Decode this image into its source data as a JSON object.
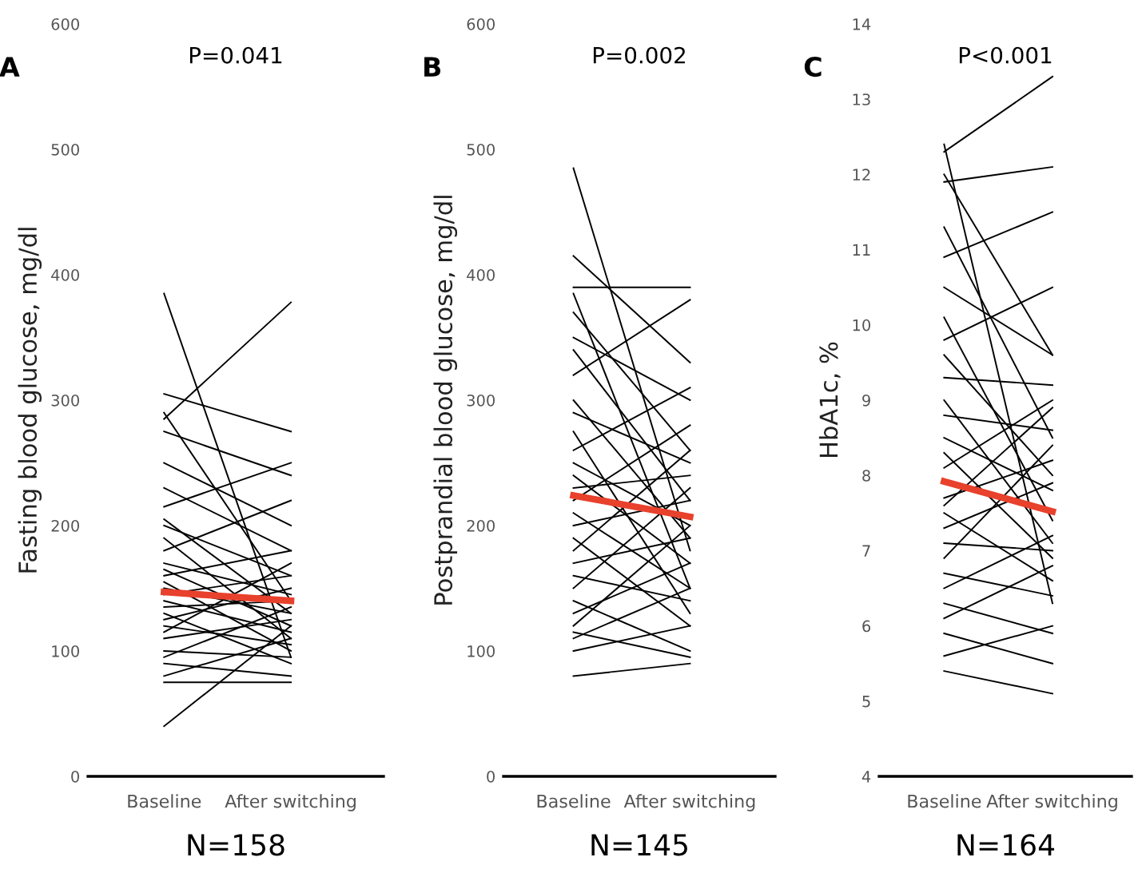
{
  "chart_data": [
    {
      "type": "line",
      "title": "P=0.041",
      "annotations": [
        "A"
      ],
      "xlabel": "N=158",
      "ylabel": "Fasting blood glucose, mg/dl",
      "categories": [
        "Baseline",
        "After switching"
      ],
      "ylim": [
        0,
        600
      ],
      "yticks": [
        0,
        100,
        200,
        300,
        400,
        500,
        600
      ],
      "grid": false,
      "legend": false,
      "marker": "none",
      "line_style": "solid",
      "series": [
        {
          "color": "#000000",
          "values": [
            385,
            95
          ]
        },
        {
          "color": "#000000",
          "values": [
            305,
            275
          ]
        },
        {
          "color": "#000000",
          "values": [
            290,
            140
          ]
        },
        {
          "color": "#000000",
          "values": [
            285,
            378
          ]
        },
        {
          "color": "#000000",
          "values": [
            275,
            240
          ]
        },
        {
          "color": "#000000",
          "values": [
            250,
            200
          ]
        },
        {
          "color": "#000000",
          "values": [
            230,
            180
          ]
        },
        {
          "color": "#000000",
          "values": [
            215,
            250
          ]
        },
        {
          "color": "#000000",
          "values": [
            205,
            130
          ]
        },
        {
          "color": "#000000",
          "values": [
            200,
            160
          ]
        },
        {
          "color": "#000000",
          "values": [
            190,
            110
          ]
        },
        {
          "color": "#000000",
          "values": [
            180,
            220
          ]
        },
        {
          "color": "#000000",
          "values": [
            170,
            145
          ]
        },
        {
          "color": "#000000",
          "values": [
            165,
            120
          ]
        },
        {
          "color": "#000000",
          "values": [
            160,
            180
          ]
        },
        {
          "color": "#000000",
          "values": [
            155,
            100
          ]
        },
        {
          "color": "#000000",
          "values": [
            150,
            130
          ]
        },
        {
          "color": "#000000",
          "values": [
            145,
            160
          ]
        },
        {
          "color": "#000000",
          "values": [
            140,
            115
          ]
        },
        {
          "color": "#000000",
          "values": [
            135,
            140
          ]
        },
        {
          "color": "#000000",
          "values": [
            130,
            90
          ]
        },
        {
          "color": "#000000",
          "values": [
            125,
            150
          ]
        },
        {
          "color": "#000000",
          "values": [
            120,
            105
          ]
        },
        {
          "color": "#000000",
          "values": [
            115,
            170
          ]
        },
        {
          "color": "#000000",
          "values": [
            110,
            125
          ]
        },
        {
          "color": "#000000",
          "values": [
            100,
            95
          ]
        },
        {
          "color": "#000000",
          "values": [
            95,
            135
          ]
        },
        {
          "color": "#000000",
          "values": [
            90,
            80
          ]
        },
        {
          "color": "#000000",
          "values": [
            80,
            110
          ]
        },
        {
          "color": "#000000",
          "values": [
            75,
            75
          ]
        },
        {
          "color": "#000000",
          "values": [
            40,
            120
          ]
        },
        {
          "color": "#e8412c",
          "values": [
            147,
            140
          ]
        }
      ]
    },
    {
      "type": "line",
      "title": "P=0.002",
      "annotations": [
        "B"
      ],
      "xlabel": "N=145",
      "ylabel": "Postprandial blood glucose, mg/dl",
      "categories": [
        "Baseline",
        "After switching"
      ],
      "ylim": [
        0,
        600
      ],
      "yticks": [
        0,
        100,
        200,
        300,
        400,
        500,
        600
      ],
      "grid": false,
      "legend": false,
      "marker": "none",
      "line_style": "solid",
      "series": [
        {
          "color": "#000000",
          "values": [
            485,
            180
          ]
        },
        {
          "color": "#000000",
          "values": [
            415,
            330
          ]
        },
        {
          "color": "#000000",
          "values": [
            390,
            390
          ]
        },
        {
          "color": "#000000",
          "values": [
            385,
            150
          ]
        },
        {
          "color": "#000000",
          "values": [
            370,
            260
          ]
        },
        {
          "color": "#000000",
          "values": [
            350,
            300
          ]
        },
        {
          "color": "#000000",
          "values": [
            340,
            220
          ]
        },
        {
          "color": "#000000",
          "values": [
            320,
            380
          ]
        },
        {
          "color": "#000000",
          "values": [
            300,
            190
          ]
        },
        {
          "color": "#000000",
          "values": [
            290,
            250
          ]
        },
        {
          "color": "#000000",
          "values": [
            275,
            130
          ]
        },
        {
          "color": "#000000",
          "values": [
            260,
            310
          ]
        },
        {
          "color": "#000000",
          "values": [
            250,
            200
          ]
        },
        {
          "color": "#000000",
          "values": [
            240,
            170
          ]
        },
        {
          "color": "#000000",
          "values": [
            230,
            240
          ]
        },
        {
          "color": "#000000",
          "values": [
            220,
            280
          ]
        },
        {
          "color": "#000000",
          "values": [
            210,
            150
          ]
        },
        {
          "color": "#000000",
          "values": [
            200,
            220
          ]
        },
        {
          "color": "#000000",
          "values": [
            190,
            120
          ]
        },
        {
          "color": "#000000",
          "values": [
            180,
            260
          ]
        },
        {
          "color": "#000000",
          "values": [
            170,
            190
          ]
        },
        {
          "color": "#000000",
          "values": [
            160,
            140
          ]
        },
        {
          "color": "#000000",
          "values": [
            150,
            230
          ]
        },
        {
          "color": "#000000",
          "values": [
            140,
            100
          ]
        },
        {
          "color": "#000000",
          "values": [
            130,
            170
          ]
        },
        {
          "color": "#000000",
          "values": [
            120,
            200
          ]
        },
        {
          "color": "#000000",
          "values": [
            115,
            95
          ]
        },
        {
          "color": "#000000",
          "values": [
            110,
            150
          ]
        },
        {
          "color": "#000000",
          "values": [
            100,
            120
          ]
        },
        {
          "color": "#000000",
          "values": [
            80,
            90
          ]
        },
        {
          "color": "#e8412c",
          "values": [
            224,
            207
          ]
        }
      ]
    },
    {
      "type": "line",
      "title": "P<0.001",
      "annotations": [
        "C"
      ],
      "xlabel": "N=164",
      "ylabel": "HbA1c, %",
      "categories": [
        "Baseline",
        "After switching"
      ],
      "ylim": [
        4,
        14
      ],
      "yticks": [
        4,
        5,
        6,
        7,
        8,
        9,
        10,
        11,
        12,
        13,
        14
      ],
      "grid": false,
      "legend": false,
      "marker": "none",
      "line_style": "solid",
      "series": [
        {
          "color": "#000000",
          "values": [
            12.4,
            6.3
          ]
        },
        {
          "color": "#000000",
          "values": [
            12.3,
            13.3
          ]
        },
        {
          "color": "#000000",
          "values": [
            12.0,
            9.6
          ]
        },
        {
          "color": "#000000",
          "values": [
            11.9,
            12.1
          ]
        },
        {
          "color": "#000000",
          "values": [
            11.3,
            8.5
          ]
        },
        {
          "color": "#000000",
          "values": [
            10.9,
            11.5
          ]
        },
        {
          "color": "#000000",
          "values": [
            10.5,
            9.6
          ]
        },
        {
          "color": "#000000",
          "values": [
            10.1,
            7.4
          ]
        },
        {
          "color": "#000000",
          "values": [
            9.8,
            10.5
          ]
        },
        {
          "color": "#000000",
          "values": [
            9.6,
            8.0
          ]
        },
        {
          "color": "#000000",
          "values": [
            9.3,
            9.2
          ]
        },
        {
          "color": "#000000",
          "values": [
            9.0,
            7.1
          ]
        },
        {
          "color": "#000000",
          "values": [
            8.8,
            8.6
          ]
        },
        {
          "color": "#000000",
          "values": [
            8.5,
            7.8
          ]
        },
        {
          "color": "#000000",
          "values": [
            8.3,
            6.9
          ]
        },
        {
          "color": "#000000",
          "values": [
            8.1,
            9.0
          ]
        },
        {
          "color": "#000000",
          "values": [
            7.6,
            8.9
          ]
        },
        {
          "color": "#000000",
          "values": [
            7.7,
            8.2
          ]
        },
        {
          "color": "#000000",
          "values": [
            7.5,
            6.6
          ]
        },
        {
          "color": "#000000",
          "values": [
            7.3,
            7.9
          ]
        },
        {
          "color": "#000000",
          "values": [
            7.1,
            7.0
          ]
        },
        {
          "color": "#000000",
          "values": [
            6.9,
            8.4
          ]
        },
        {
          "color": "#000000",
          "values": [
            6.7,
            6.4
          ]
        },
        {
          "color": "#000000",
          "values": [
            6.5,
            7.2
          ]
        },
        {
          "color": "#000000",
          "values": [
            6.3,
            5.9
          ]
        },
        {
          "color": "#000000",
          "values": [
            6.1,
            6.8
          ]
        },
        {
          "color": "#000000",
          "values": [
            5.9,
            5.5
          ]
        },
        {
          "color": "#000000",
          "values": [
            5.6,
            6.0
          ]
        },
        {
          "color": "#000000",
          "values": [
            5.4,
            5.1
          ]
        },
        {
          "color": "#e8412c",
          "values": [
            7.92,
            7.52
          ]
        }
      ]
    }
  ]
}
